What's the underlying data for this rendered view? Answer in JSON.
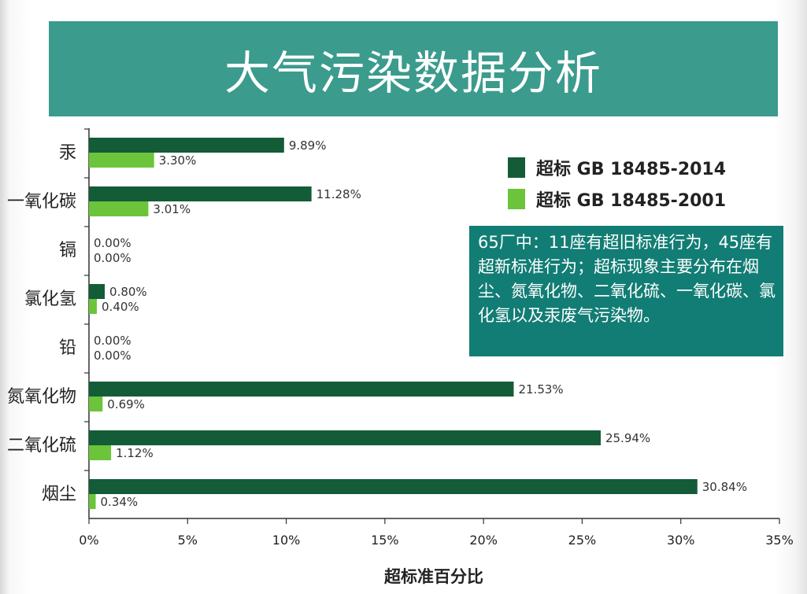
{
  "title": "大气污染数据分析",
  "note": "65厂中：11座有超旧标准行为，45座有超新标准行为；超标现象主要分布在烟尘、氮氧化物、二氧化硫、一氧化碳、氯化氢以及汞废气污染物。",
  "colors": {
    "banner": "#3b9b8d",
    "note_bg": "#127d74",
    "series_new": "#145c37",
    "series_old": "#6cc43a"
  },
  "chart_data": {
    "type": "bar",
    "orientation": "horizontal",
    "categories": [
      "汞",
      "一氧化碳",
      "镉",
      "氯化氢",
      "铅",
      "氮氧化物",
      "二氧化硫",
      "烟尘"
    ],
    "series": [
      {
        "name": "超标 GB 18485-2014",
        "values": [
          9.89,
          11.28,
          0.0,
          0.8,
          0.0,
          21.53,
          25.94,
          30.84
        ],
        "labels": [
          "9.89%",
          "11.28%",
          "0.00%",
          "0.80%",
          "0.00%",
          "21.53%",
          "25.94%",
          "30.84%"
        ]
      },
      {
        "name": "超标 GB 18485-2001",
        "values": [
          3.3,
          3.01,
          0.0,
          0.4,
          0.0,
          0.69,
          1.12,
          0.34
        ],
        "labels": [
          "3.30%",
          "3.01%",
          "0.00%",
          "0.40%",
          "0.00%",
          "0.69%",
          "1.12%",
          "0.34%"
        ]
      }
    ],
    "xlabel": "超标准百分比",
    "xlim": [
      0,
      35
    ],
    "xticks": [
      "0%",
      "5%",
      "10%",
      "15%",
      "20%",
      "25%",
      "30%",
      "35%"
    ],
    "grid": false,
    "legend_position": "top-right"
  }
}
